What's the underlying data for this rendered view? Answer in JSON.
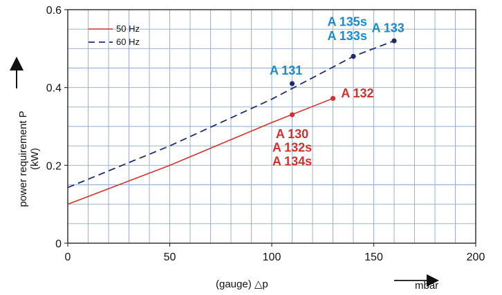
{
  "chart_data": {
    "type": "line",
    "xlabel": "(gauge) △p",
    "x_unit": "mbar",
    "ylabel_line1": "power requirement P",
    "ylabel_line2": "(kW)",
    "xlim": [
      0,
      200
    ],
    "ylim": [
      0,
      0.6
    ],
    "x_ticks": [
      0,
      50,
      100,
      150,
      200
    ],
    "y_ticks": [
      0,
      0.2,
      0.4,
      0.6
    ],
    "x_tick_labels": [
      "0",
      "50",
      "100",
      "150",
      "200"
    ],
    "y_tick_labels": [
      "0",
      "0.2",
      "0.4",
      "0.6"
    ],
    "grid": true,
    "legend_position": "top-left",
    "colors": {
      "grid": "#8ea9c9",
      "frame": "#333333",
      "series_50": "#d2302f",
      "series_60": "#1f2a6b",
      "annot_50": "#d2302f",
      "annot_60": "#1a8ac9"
    },
    "series": [
      {
        "name": "50 Hz",
        "style": "solid",
        "x": [
          0,
          50,
          100,
          130
        ],
        "y": [
          0.1,
          0.2,
          0.31,
          0.372
        ]
      },
      {
        "name": "60 Hz",
        "style": "dashed",
        "x": [
          0,
          50,
          100,
          140,
          160
        ],
        "y": [
          0.143,
          0.25,
          0.37,
          0.48,
          0.52
        ]
      }
    ],
    "points": [
      {
        "series": "50 Hz",
        "x": 110,
        "y": 0.33
      },
      {
        "series": "50 Hz",
        "x": 130,
        "y": 0.372
      },
      {
        "series": "60 Hz",
        "x": 110,
        "y": 0.41
      },
      {
        "series": "60 Hz",
        "x": 140,
        "y": 0.48
      },
      {
        "series": "60 Hz",
        "x": 160,
        "y": 0.52
      }
    ],
    "annotations": [
      {
        "text": "A 130",
        "color_key": "annot_50",
        "x": 110,
        "y": 0.27
      },
      {
        "text": "A 132s",
        "color_key": "annot_50",
        "x": 110,
        "y": 0.235
      },
      {
        "text": "A 134s",
        "color_key": "annot_50",
        "x": 110,
        "y": 0.2
      },
      {
        "text": "A 132",
        "color_key": "annot_50",
        "x": 142,
        "y": 0.375
      },
      {
        "text": "A 131",
        "color_key": "annot_60",
        "x": 107,
        "y": 0.433
      },
      {
        "text": "A 135s",
        "color_key": "annot_60",
        "x": 137,
        "y": 0.558
      },
      {
        "text": "A 133s",
        "color_key": "annot_60",
        "x": 137,
        "y": 0.522
      },
      {
        "text": "A 133",
        "color_key": "annot_60",
        "x": 157,
        "y": 0.542
      }
    ]
  }
}
